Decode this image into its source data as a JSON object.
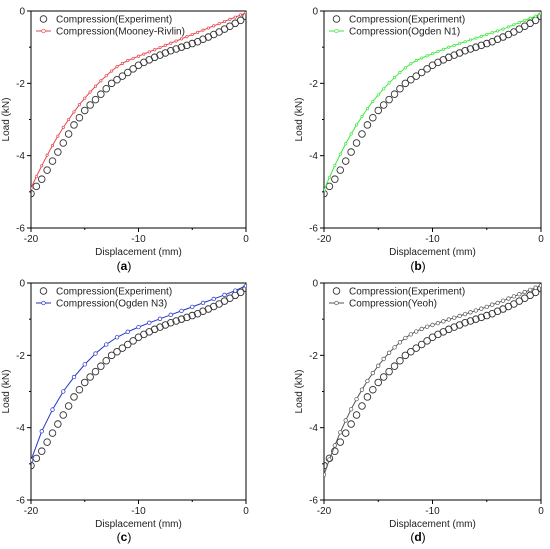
{
  "chart_data": [
    {
      "type": "scatter",
      "panel": "a",
      "caption": "(a)",
      "xlabel": "Displacement (mm)",
      "ylabel": "Load (kN)",
      "xlim": [
        -20,
        0
      ],
      "ylim": [
        -6,
        0
      ],
      "x_ticks": [
        -20,
        -10,
        0
      ],
      "y_ticks": [
        0,
        -2,
        -4,
        -6
      ],
      "x_tick_labels": [
        "-20",
        "-10",
        "0"
      ],
      "y_tick_labels": [
        "0",
        "-2",
        "-4",
        "-6"
      ],
      "legend_position": "top-left",
      "series": [
        {
          "name": "Compression(Experiment)",
          "style": "open-circles",
          "color": "#333333",
          "x": [
            -20,
            -19.5,
            -19,
            -18.5,
            -18,
            -17.5,
            -17,
            -16.5,
            -16,
            -15.5,
            -15,
            -14.5,
            -14,
            -13.5,
            -13,
            -12.5,
            -12,
            -11.5,
            -11,
            -10.5,
            -10,
            -9.5,
            -9,
            -8.5,
            -8,
            -7.5,
            -7,
            -6.5,
            -6,
            -5.5,
            -5,
            -4.5,
            -4,
            -3.5,
            -3,
            -2.5,
            -2,
            -1.5,
            -1,
            -0.5,
            0
          ],
          "y": [
            -5.05,
            -4.85,
            -4.65,
            -4.4,
            -4.15,
            -3.9,
            -3.65,
            -3.4,
            -3.15,
            -2.95,
            -2.75,
            -2.6,
            -2.45,
            -2.3,
            -2.15,
            -2.0,
            -1.9,
            -1.8,
            -1.7,
            -1.6,
            -1.5,
            -1.42,
            -1.35,
            -1.28,
            -1.22,
            -1.16,
            -1.1,
            -1.05,
            -1.0,
            -0.95,
            -0.9,
            -0.85,
            -0.78,
            -0.72,
            -0.65,
            -0.58,
            -0.5,
            -0.42,
            -0.34,
            -0.26,
            -0.15
          ]
        },
        {
          "name": "Compression(Mooney-Rivlin)",
          "style": "line",
          "color": "#e8454a",
          "x": [
            -20,
            -19.5,
            -19,
            -18.5,
            -18,
            -17.5,
            -17,
            -16.5,
            -16,
            -15.5,
            -15,
            -14.5,
            -14,
            -13.5,
            -13,
            -12.5,
            -12,
            -11.5,
            -11,
            -10.5,
            -10,
            -9.5,
            -9,
            -8.5,
            -8,
            -7.5,
            -7,
            -6.5,
            -6,
            -5.5,
            -5,
            -4.5,
            -4,
            -3.5,
            -3,
            -2.5,
            -2,
            -1.5,
            -1,
            -0.5,
            0
          ],
          "y": [
            -4.9,
            -4.58,
            -4.28,
            -3.99,
            -3.72,
            -3.46,
            -3.22,
            -3.0,
            -2.79,
            -2.59,
            -2.41,
            -2.24,
            -2.08,
            -1.93,
            -1.79,
            -1.66,
            -1.54,
            -1.45,
            -1.37,
            -1.31,
            -1.25,
            -1.19,
            -1.13,
            -1.07,
            -1.01,
            -0.95,
            -0.89,
            -0.83,
            -0.77,
            -0.71,
            -0.65,
            -0.59,
            -0.53,
            -0.47,
            -0.41,
            -0.35,
            -0.29,
            -0.23,
            -0.17,
            -0.11,
            -0.05
          ]
        }
      ]
    },
    {
      "type": "scatter",
      "panel": "b",
      "caption": "(b)",
      "xlabel": "Displacement (mm)",
      "ylabel": "Load (kN)",
      "xlim": [
        -20,
        0
      ],
      "ylim": [
        -6,
        0
      ],
      "x_ticks": [
        -20,
        -10,
        0
      ],
      "y_ticks": [
        0,
        -2,
        -4,
        -6
      ],
      "x_tick_labels": [
        "-20",
        "-10",
        "0"
      ],
      "y_tick_labels": [
        "0",
        "-2",
        "-4",
        "-6"
      ],
      "legend_position": "top-left",
      "series": [
        {
          "name": "Compression(Experiment)",
          "style": "open-circles",
          "color": "#333333",
          "x": [
            -20,
            -19.5,
            -19,
            -18.5,
            -18,
            -17.5,
            -17,
            -16.5,
            -16,
            -15.5,
            -15,
            -14.5,
            -14,
            -13.5,
            -13,
            -12.5,
            -12,
            -11.5,
            -11,
            -10.5,
            -10,
            -9.5,
            -9,
            -8.5,
            -8,
            -7.5,
            -7,
            -6.5,
            -6,
            -5.5,
            -5,
            -4.5,
            -4,
            -3.5,
            -3,
            -2.5,
            -2,
            -1.5,
            -1,
            -0.5,
            0
          ],
          "y": [
            -5.05,
            -4.85,
            -4.65,
            -4.4,
            -4.15,
            -3.9,
            -3.65,
            -3.4,
            -3.15,
            -2.95,
            -2.75,
            -2.6,
            -2.45,
            -2.3,
            -2.15,
            -2.0,
            -1.9,
            -1.8,
            -1.7,
            -1.6,
            -1.5,
            -1.42,
            -1.35,
            -1.28,
            -1.22,
            -1.16,
            -1.1,
            -1.05,
            -1.0,
            -0.95,
            -0.9,
            -0.85,
            -0.78,
            -0.72,
            -0.65,
            -0.58,
            -0.5,
            -0.42,
            -0.34,
            -0.26,
            -0.15
          ]
        },
        {
          "name": "Compression(Ogden N1)",
          "style": "line",
          "color": "#3ee83e",
          "x": [
            -20,
            -19.5,
            -19,
            -18.5,
            -18,
            -17.5,
            -17,
            -16.5,
            -16,
            -15.5,
            -15,
            -14.5,
            -14,
            -13.5,
            -13,
            -12.5,
            -12,
            -11.5,
            -11,
            -10.5,
            -10,
            -9.5,
            -9,
            -8.5,
            -8,
            -7.5,
            -7,
            -6.5,
            -6,
            -5.5,
            -5,
            -4.5,
            -4,
            -3.5,
            -3,
            -2.5,
            -2,
            -1.5,
            -1,
            -0.5,
            0
          ],
          "y": [
            -4.95,
            -4.6,
            -4.27,
            -3.96,
            -3.67,
            -3.4,
            -3.15,
            -2.92,
            -2.7,
            -2.5,
            -2.32,
            -2.15,
            -1.99,
            -1.84,
            -1.7,
            -1.57,
            -1.46,
            -1.37,
            -1.3,
            -1.24,
            -1.18,
            -1.12,
            -1.06,
            -1.0,
            -0.95,
            -0.9,
            -0.85,
            -0.8,
            -0.75,
            -0.7,
            -0.65,
            -0.6,
            -0.55,
            -0.5,
            -0.44,
            -0.38,
            -0.32,
            -0.26,
            -0.2,
            -0.14,
            -0.06
          ]
        }
      ]
    },
    {
      "type": "scatter",
      "panel": "c",
      "caption": "(c)",
      "xlabel": "Displacement (mm)",
      "ylabel": "Load (kN)",
      "xlim": [
        -20,
        0
      ],
      "ylim": [
        -6,
        0
      ],
      "x_ticks": [
        -20,
        -10,
        0
      ],
      "y_ticks": [
        0,
        -2,
        -4,
        -6
      ],
      "x_tick_labels": [
        "-20",
        "-10",
        "0"
      ],
      "y_tick_labels": [
        "0",
        "-2",
        "-4",
        "-6"
      ],
      "legend_position": "top-left",
      "series": [
        {
          "name": "Compression(Experiment)",
          "style": "open-circles",
          "color": "#333333",
          "x": [
            -20,
            -19.5,
            -19,
            -18.5,
            -18,
            -17.5,
            -17,
            -16.5,
            -16,
            -15.5,
            -15,
            -14.5,
            -14,
            -13.5,
            -13,
            -12.5,
            -12,
            -11.5,
            -11,
            -10.5,
            -10,
            -9.5,
            -9,
            -8.5,
            -8,
            -7.5,
            -7,
            -6.5,
            -6,
            -5.5,
            -5,
            -4.5,
            -4,
            -3.5,
            -3,
            -2.5,
            -2,
            -1.5,
            -1,
            -0.5,
            0
          ],
          "y": [
            -5.05,
            -4.85,
            -4.65,
            -4.4,
            -4.15,
            -3.9,
            -3.65,
            -3.4,
            -3.15,
            -2.95,
            -2.75,
            -2.6,
            -2.45,
            -2.3,
            -2.15,
            -2.0,
            -1.9,
            -1.8,
            -1.7,
            -1.6,
            -1.5,
            -1.42,
            -1.35,
            -1.28,
            -1.22,
            -1.16,
            -1.1,
            -1.05,
            -1.0,
            -0.95,
            -0.9,
            -0.85,
            -0.78,
            -0.72,
            -0.65,
            -0.58,
            -0.5,
            -0.42,
            -0.34,
            -0.26,
            -0.15
          ]
        },
        {
          "name": "Compression(Ogden N3)",
          "style": "line-with-markers",
          "color": "#2233cc",
          "x": [
            -20,
            -19,
            -18,
            -17,
            -16,
            -15,
            -14,
            -13,
            -12,
            -11,
            -10,
            -9,
            -8,
            -7,
            -6,
            -5,
            -4,
            -3,
            -2,
            -1,
            0
          ],
          "y": [
            -4.9,
            -4.1,
            -3.5,
            -3.0,
            -2.6,
            -2.25,
            -1.95,
            -1.7,
            -1.5,
            -1.35,
            -1.22,
            -1.1,
            -0.99,
            -0.88,
            -0.77,
            -0.66,
            -0.55,
            -0.44,
            -0.33,
            -0.21,
            -0.08
          ]
        }
      ]
    },
    {
      "type": "scatter",
      "panel": "d",
      "caption": "(d)",
      "xlabel": "Displacement (mm)",
      "ylabel": "Load (kN)",
      "xlim": [
        -20,
        0
      ],
      "ylim": [
        -6,
        0
      ],
      "x_ticks": [
        -20,
        -10,
        0
      ],
      "y_ticks": [
        0,
        -2,
        -4,
        -6
      ],
      "x_tick_labels": [
        "-20",
        "-10",
        "0"
      ],
      "y_tick_labels": [
        "0",
        "-2",
        "-4",
        "-6"
      ],
      "legend_position": "top-left",
      "series": [
        {
          "name": "Compression(Experiment)",
          "style": "open-circles",
          "color": "#333333",
          "x": [
            -20,
            -19.5,
            -19,
            -18.5,
            -18,
            -17.5,
            -17,
            -16.5,
            -16,
            -15.5,
            -15,
            -14.5,
            -14,
            -13.5,
            -13,
            -12.5,
            -12,
            -11.5,
            -11,
            -10.5,
            -10,
            -9.5,
            -9,
            -8.5,
            -8,
            -7.5,
            -7,
            -6.5,
            -6,
            -5.5,
            -5,
            -4.5,
            -4,
            -3.5,
            -3,
            -2.5,
            -2,
            -1.5,
            -1,
            -0.5,
            0
          ],
          "y": [
            -5.05,
            -4.85,
            -4.65,
            -4.4,
            -4.15,
            -3.9,
            -3.65,
            -3.4,
            -3.15,
            -2.95,
            -2.75,
            -2.6,
            -2.45,
            -2.3,
            -2.15,
            -2.0,
            -1.9,
            -1.8,
            -1.7,
            -1.6,
            -1.5,
            -1.42,
            -1.35,
            -1.28,
            -1.22,
            -1.16,
            -1.1,
            -1.05,
            -1.0,
            -0.95,
            -0.9,
            -0.85,
            -0.78,
            -0.72,
            -0.65,
            -0.58,
            -0.5,
            -0.42,
            -0.34,
            -0.26,
            -0.15
          ]
        },
        {
          "name": "Compression(Yeoh)",
          "style": "line-with-markers",
          "color": "#555555",
          "x": [
            -20,
            -19.5,
            -19,
            -18.5,
            -18,
            -17.5,
            -17,
            -16.5,
            -16,
            -15.5,
            -15,
            -14.5,
            -14,
            -13.5,
            -13,
            -12.5,
            -12,
            -11.5,
            -11,
            -10.5,
            -10,
            -9.5,
            -9,
            -8.5,
            -8,
            -7.5,
            -7,
            -6.5,
            -6,
            -5.5,
            -5,
            -4.5,
            -4,
            -3.5,
            -3,
            -2.5,
            -2,
            -1.5,
            -1,
            -0.5,
            0
          ],
          "y": [
            -5.3,
            -4.88,
            -4.49,
            -4.13,
            -3.8,
            -3.49,
            -3.21,
            -2.95,
            -2.71,
            -2.49,
            -2.29,
            -2.1,
            -1.93,
            -1.78,
            -1.64,
            -1.52,
            -1.42,
            -1.34,
            -1.27,
            -1.21,
            -1.16,
            -1.11,
            -1.06,
            -1.01,
            -0.96,
            -0.91,
            -0.86,
            -0.81,
            -0.76,
            -0.71,
            -0.66,
            -0.6,
            -0.55,
            -0.49,
            -0.43,
            -0.37,
            -0.31,
            -0.25,
            -0.19,
            -0.13,
            -0.07
          ]
        }
      ]
    }
  ]
}
